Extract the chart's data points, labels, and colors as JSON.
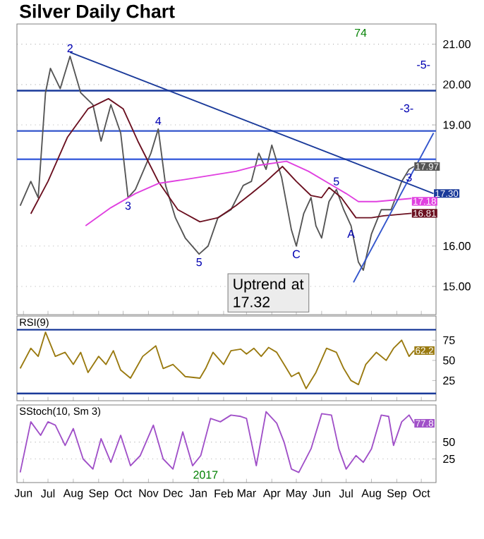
{
  "chart_data": [
    {
      "type": "line",
      "title": "Silver Daily Chart",
      "xlim": [
        "2016-05-24",
        "2017-10-19"
      ],
      "ylim": [
        14.3,
        21.5
      ],
      "tick_labels": "y",
      "grid": "y",
      "xticks": [
        {
          "value": "2016-06-01",
          "label": null
        },
        {
          "value": "2016-07-01",
          "label": null
        },
        {
          "value": "2016-08-01",
          "label": null
        },
        {
          "value": "2016-09-01",
          "label": null
        },
        {
          "value": "2016-10-01",
          "label": null
        },
        {
          "value": "2016-11-01",
          "label": null
        },
        {
          "value": "2016-12-01",
          "label": null
        },
        {
          "value": "2017-01-01",
          "label": null
        },
        {
          "value": "2017-02-01",
          "label": null
        },
        {
          "value": "2017-03-01",
          "label": null
        },
        {
          "value": "2017-04-01",
          "label": null
        },
        {
          "value": "2017-05-01",
          "label": null
        },
        {
          "value": "2017-06-01",
          "label": null
        },
        {
          "value": "2017-07-01",
          "label": null
        },
        {
          "value": "2017-08-01",
          "label": null
        },
        {
          "value": "2017-09-01",
          "label": null
        },
        {
          "value": "2017-10-01",
          "label": null
        }
      ],
      "yticks": [
        {
          "value": 15,
          "label": "15.00"
        },
        {
          "value": 16,
          "label": "16.00"
        },
        {
          "value": 19,
          "label": "19.00"
        },
        {
          "value": 20,
          "label": "20.00"
        },
        {
          "value": 21,
          "label": "21.00"
        }
      ],
      "series": [
        {
          "color": "#555555",
          "x": [
            "2016-05-28",
            "2016-06-10",
            "2016-06-19",
            "2016-06-28",
            "2016-07-04",
            "2016-07-16",
            "2016-07-28",
            "2016-08-10",
            "2016-08-25",
            "2016-09-04",
            "2016-09-16",
            "2016-09-28",
            "2016-10-07",
            "2016-10-16",
            "2016-11-04",
            "2016-11-13",
            "2016-11-22",
            "2016-12-04",
            "2016-12-16",
            "2017-01-02",
            "2017-01-13",
            "2017-01-25",
            "2017-02-10",
            "2017-02-25",
            "2017-03-07",
            "2017-03-16",
            "2017-03-25",
            "2017-04-01",
            "2017-04-13",
            "2017-04-25",
            "2017-05-01",
            "2017-05-10",
            "2017-05-19",
            "2017-05-25",
            "2017-06-01",
            "2017-06-10",
            "2017-06-19",
            "2017-06-28",
            "2017-07-07",
            "2017-07-16",
            "2017-07-22",
            "2017-08-01",
            "2017-08-13",
            "2017-08-25",
            "2017-09-07",
            "2017-09-16",
            "2017-09-22"
          ],
          "values": [
            17.0,
            17.6,
            17.2,
            19.8,
            20.4,
            19.9,
            20.7,
            19.8,
            19.5,
            18.6,
            19.5,
            18.8,
            17.2,
            17.4,
            18.3,
            18.9,
            17.5,
            16.7,
            16.2,
            15.8,
            16.0,
            16.7,
            16.9,
            17.5,
            17.6,
            18.3,
            17.9,
            18.5,
            17.7,
            16.4,
            16.0,
            16.8,
            17.2,
            16.5,
            16.2,
            17.1,
            17.4,
            16.9,
            16.5,
            15.6,
            15.4,
            16.3,
            16.9,
            16.9,
            17.6,
            17.9,
            17.97
          ],
          "value_labels": [
            null,
            null,
            null,
            null,
            null,
            null,
            null,
            null,
            null,
            null,
            null,
            null,
            null,
            null,
            null,
            null,
            null,
            null,
            null,
            null,
            null,
            null,
            null,
            null,
            null,
            null,
            null,
            null,
            null,
            null,
            null,
            null,
            null,
            null,
            null,
            null,
            null,
            null,
            null,
            null,
            null,
            null,
            null,
            null,
            null,
            null,
            "17.97"
          ]
        },
        {
          "color": "#6b1020",
          "x": [
            "2016-06-10",
            "2016-07-01",
            "2016-07-25",
            "2016-08-19",
            "2016-09-13",
            "2016-10-01",
            "2016-10-19",
            "2016-11-13",
            "2016-12-07",
            "2017-01-03",
            "2017-01-25",
            "2017-02-16",
            "2017-03-07",
            "2017-03-25",
            "2017-04-14",
            "2017-05-01",
            "2017-05-19",
            "2017-06-01",
            "2017-06-10",
            "2017-06-25",
            "2017-07-13",
            "2017-08-01",
            "2017-08-16",
            "2017-09-19"
          ],
          "values": [
            16.8,
            17.6,
            18.7,
            19.4,
            19.65,
            19.4,
            18.6,
            17.6,
            16.9,
            16.6,
            16.7,
            17.0,
            17.3,
            17.6,
            17.97,
            17.6,
            17.25,
            17.2,
            17.45,
            17.2,
            16.7,
            16.7,
            16.75,
            16.81
          ],
          "value_labels": [
            null,
            null,
            null,
            null,
            null,
            null,
            null,
            null,
            null,
            null,
            null,
            null,
            null,
            null,
            null,
            null,
            null,
            null,
            null,
            null,
            null,
            null,
            null,
            "16.81"
          ]
        },
        {
          "color": "#e040e0",
          "x": [
            "2016-08-16",
            "2016-09-16",
            "2016-10-16",
            "2016-11-13",
            "2016-12-16",
            "2017-01-16",
            "2017-02-16",
            "2017-03-16",
            "2017-04-19",
            "2017-05-16",
            "2017-06-10",
            "2017-07-01",
            "2017-07-16",
            "2017-08-07",
            "2017-09-19"
          ],
          "values": [
            16.5,
            16.95,
            17.3,
            17.55,
            17.65,
            17.75,
            17.85,
            18.0,
            18.1,
            17.85,
            17.55,
            17.3,
            17.1,
            17.1,
            17.18
          ],
          "value_labels": [
            null,
            null,
            null,
            null,
            null,
            null,
            null,
            null,
            null,
            null,
            null,
            null,
            null,
            null,
            "17.18"
          ]
        },
        {
          "color": "#1a3a9a",
          "x": [
            "2016-07-28",
            "2017-10-16"
          ],
          "values": [
            20.8,
            17.3
          ],
          "value_labels": [
            null,
            "17.30"
          ]
        },
        {
          "color": "#3355cc",
          "x": [
            "2017-07-10",
            "2017-10-16"
          ],
          "values": [
            15.1,
            18.8
          ]
        }
      ],
      "ref_lines": [
        {
          "axis": "y",
          "value": 19.85,
          "color": "#1a3a9a"
        },
        {
          "axis": "y",
          "value": 18.85,
          "color": "#3355cc"
        },
        {
          "axis": "y",
          "value": 18.15,
          "color": "#4466dd"
        }
      ],
      "annotations": [
        "Uptrend at 17.32",
        "74",
        "-5-",
        "-3-",
        {
          "text": "2",
          "x": "2016-07-28",
          "y": 20.7
        },
        {
          "text": "3",
          "x": "2016-10-07",
          "y": 17.2
        },
        {
          "text": "4",
          "x": "2016-11-13",
          "y": 18.9
        },
        {
          "text": "5",
          "x": "2017-01-02",
          "y": 15.8
        },
        {
          "text": "C",
          "x": "2017-05-01",
          "y": 16.0
        },
        {
          "text": "A",
          "x": "2017-07-07",
          "y": 16.5
        },
        {
          "text": "5",
          "x": "2017-06-19",
          "y": 17.4
        },
        {
          "text": "3",
          "x": "2017-09-16",
          "y": 17.9
        }
      ]
    },
    {
      "type": "line",
      "title": "RSI(9)",
      "xlim": [
        "2016-05-24",
        "2017-10-19"
      ],
      "ylim": [
        0,
        105
      ],
      "tick_labels": "y",
      "xticks": [
        {
          "value": "2016-06-01",
          "label": null
        },
        {
          "value": "2016-07-01",
          "label": null
        },
        {
          "value": "2016-08-01",
          "label": null
        },
        {
          "value": "2016-09-01",
          "label": null
        },
        {
          "value": "2016-10-01",
          "label": null
        },
        {
          "value": "2016-11-01",
          "label": null
        },
        {
          "value": "2016-12-01",
          "label": null
        },
        {
          "value": "2017-01-01",
          "label": null
        },
        {
          "value": "2017-02-01",
          "label": null
        },
        {
          "value": "2017-03-01",
          "label": null
        },
        {
          "value": "2017-04-01",
          "label": null
        },
        {
          "value": "2017-05-01",
          "label": null
        },
        {
          "value": "2017-06-01",
          "label": null
        },
        {
          "value": "2017-07-01",
          "label": null
        },
        {
          "value": "2017-08-01",
          "label": null
        },
        {
          "value": "2017-09-01",
          "label": null
        },
        {
          "value": "2017-10-01",
          "label": null
        }
      ],
      "yticks": [
        25,
        50,
        75
      ],
      "series": [
        {
          "color": "#9a7a10",
          "x": [
            "2016-05-28",
            "2016-06-10",
            "2016-06-19",
            "2016-06-28",
            "2016-07-10",
            "2016-07-22",
            "2016-08-01",
            "2016-08-10",
            "2016-08-19",
            "2016-09-01",
            "2016-09-10",
            "2016-09-19",
            "2016-09-28",
            "2016-10-10",
            "2016-10-25",
            "2016-11-10",
            "2016-11-19",
            "2016-12-01",
            "2016-12-16",
            "2017-01-03",
            "2017-01-10",
            "2017-01-19",
            "2017-02-01",
            "2017-02-10",
            "2017-02-22",
            "2017-03-01",
            "2017-03-10",
            "2017-03-19",
            "2017-03-28",
            "2017-04-07",
            "2017-04-16",
            "2017-04-25",
            "2017-05-04",
            "2017-05-13",
            "2017-05-25",
            "2017-06-07",
            "2017-06-19",
            "2017-06-28",
            "2017-07-07",
            "2017-07-16",
            "2017-07-25",
            "2017-08-07",
            "2017-08-19",
            "2017-08-28",
            "2017-09-07",
            "2017-09-16",
            "2017-09-22"
          ],
          "values": [
            40,
            65,
            55,
            85,
            55,
            60,
            45,
            60,
            35,
            55,
            45,
            62,
            38,
            28,
            55,
            68,
            40,
            45,
            30,
            28,
            40,
            60,
            45,
            62,
            64,
            58,
            65,
            55,
            66,
            60,
            45,
            30,
            35,
            15,
            35,
            65,
            60,
            40,
            25,
            20,
            45,
            60,
            50,
            65,
            75,
            55,
            62.2
          ],
          "value_labels": [
            null,
            null,
            null,
            null,
            null,
            null,
            null,
            null,
            null,
            null,
            null,
            null,
            null,
            null,
            null,
            null,
            null,
            null,
            null,
            null,
            null,
            null,
            null,
            null,
            null,
            null,
            null,
            null,
            null,
            null,
            null,
            null,
            null,
            null,
            null,
            null,
            null,
            null,
            null,
            null,
            null,
            null,
            null,
            null,
            null,
            null,
            "62.2"
          ]
        }
      ],
      "ref_lines": [
        {
          "axis": "y",
          "value": 88,
          "color": "#1a3a9a"
        },
        {
          "axis": "y",
          "value": 9,
          "color": "#1a3a9a"
        }
      ]
    },
    {
      "type": "line",
      "title": "SStoch(10, Sm 3)",
      "xlim": [
        "2016-05-24",
        "2017-10-19"
      ],
      "ylim": [
        -10,
        105
      ],
      "grid": "y",
      "xticks": [
        {
          "value": "2016-06-01",
          "label": "Jun"
        },
        {
          "value": "2016-07-01",
          "label": "Jul"
        },
        {
          "value": "2016-08-01",
          "label": "Aug"
        },
        {
          "value": "2016-09-01",
          "label": "Sep"
        },
        {
          "value": "2016-10-01",
          "label": "Oct"
        },
        {
          "value": "2016-11-01",
          "label": "Nov"
        },
        {
          "value": "2016-12-01",
          "label": "Dec"
        },
        {
          "value": "2017-01-01",
          "label": "Jan"
        },
        {
          "value": "2017-02-01",
          "label": "Feb"
        },
        {
          "value": "2017-03-01",
          "label": "Mar"
        },
        {
          "value": "2017-04-01",
          "label": "Apr"
        },
        {
          "value": "2017-05-01",
          "label": "May"
        },
        {
          "value": "2017-06-01",
          "label": "Jun"
        },
        {
          "value": "2017-07-01",
          "label": "Jul"
        },
        {
          "value": "2017-08-01",
          "label": "Aug"
        },
        {
          "value": "2017-09-01",
          "label": "Sep"
        },
        {
          "value": "2017-10-01",
          "label": "Oct"
        }
      ],
      "yticks": [
        25,
        50
      ],
      "series": [
        {
          "color": "#a050c8",
          "x": [
            "2016-05-28",
            "2016-06-10",
            "2016-06-22",
            "2016-07-01",
            "2016-07-10",
            "2016-07-22",
            "2016-08-01",
            "2016-08-13",
            "2016-08-25",
            "2016-09-04",
            "2016-09-16",
            "2016-09-28",
            "2016-10-10",
            "2016-10-22",
            "2016-11-07",
            "2016-11-19",
            "2016-12-01",
            "2016-12-13",
            "2016-12-25",
            "2017-01-04",
            "2017-01-16",
            "2017-01-28",
            "2017-02-10",
            "2017-02-22",
            "2017-03-01",
            "2017-03-13",
            "2017-03-25",
            "2017-04-07",
            "2017-04-16",
            "2017-04-25",
            "2017-05-04",
            "2017-05-19",
            "2017-06-01",
            "2017-06-13",
            "2017-06-22",
            "2017-07-01",
            "2017-07-13",
            "2017-07-22",
            "2017-08-01",
            "2017-08-13",
            "2017-08-22",
            "2017-08-28",
            "2017-09-07",
            "2017-09-16",
            "2017-09-22"
          ],
          "values": [
            5,
            80,
            60,
            80,
            75,
            45,
            70,
            25,
            10,
            55,
            20,
            60,
            15,
            30,
            75,
            25,
            10,
            65,
            15,
            30,
            85,
            80,
            90,
            88,
            85,
            15,
            95,
            78,
            50,
            10,
            5,
            40,
            92,
            90,
            40,
            10,
            30,
            20,
            40,
            90,
            88,
            45,
            80,
            90,
            77.8
          ],
          "value_labels": [
            null,
            null,
            null,
            null,
            null,
            null,
            null,
            null,
            null,
            null,
            null,
            null,
            null,
            null,
            null,
            null,
            null,
            null,
            null,
            null,
            null,
            null,
            null,
            null,
            null,
            null,
            null,
            null,
            null,
            null,
            null,
            null,
            null,
            null,
            null,
            null,
            null,
            null,
            null,
            null,
            null,
            null,
            null,
            null,
            "77.8"
          ]
        }
      ],
      "annotations": [
        "2017"
      ]
    }
  ]
}
